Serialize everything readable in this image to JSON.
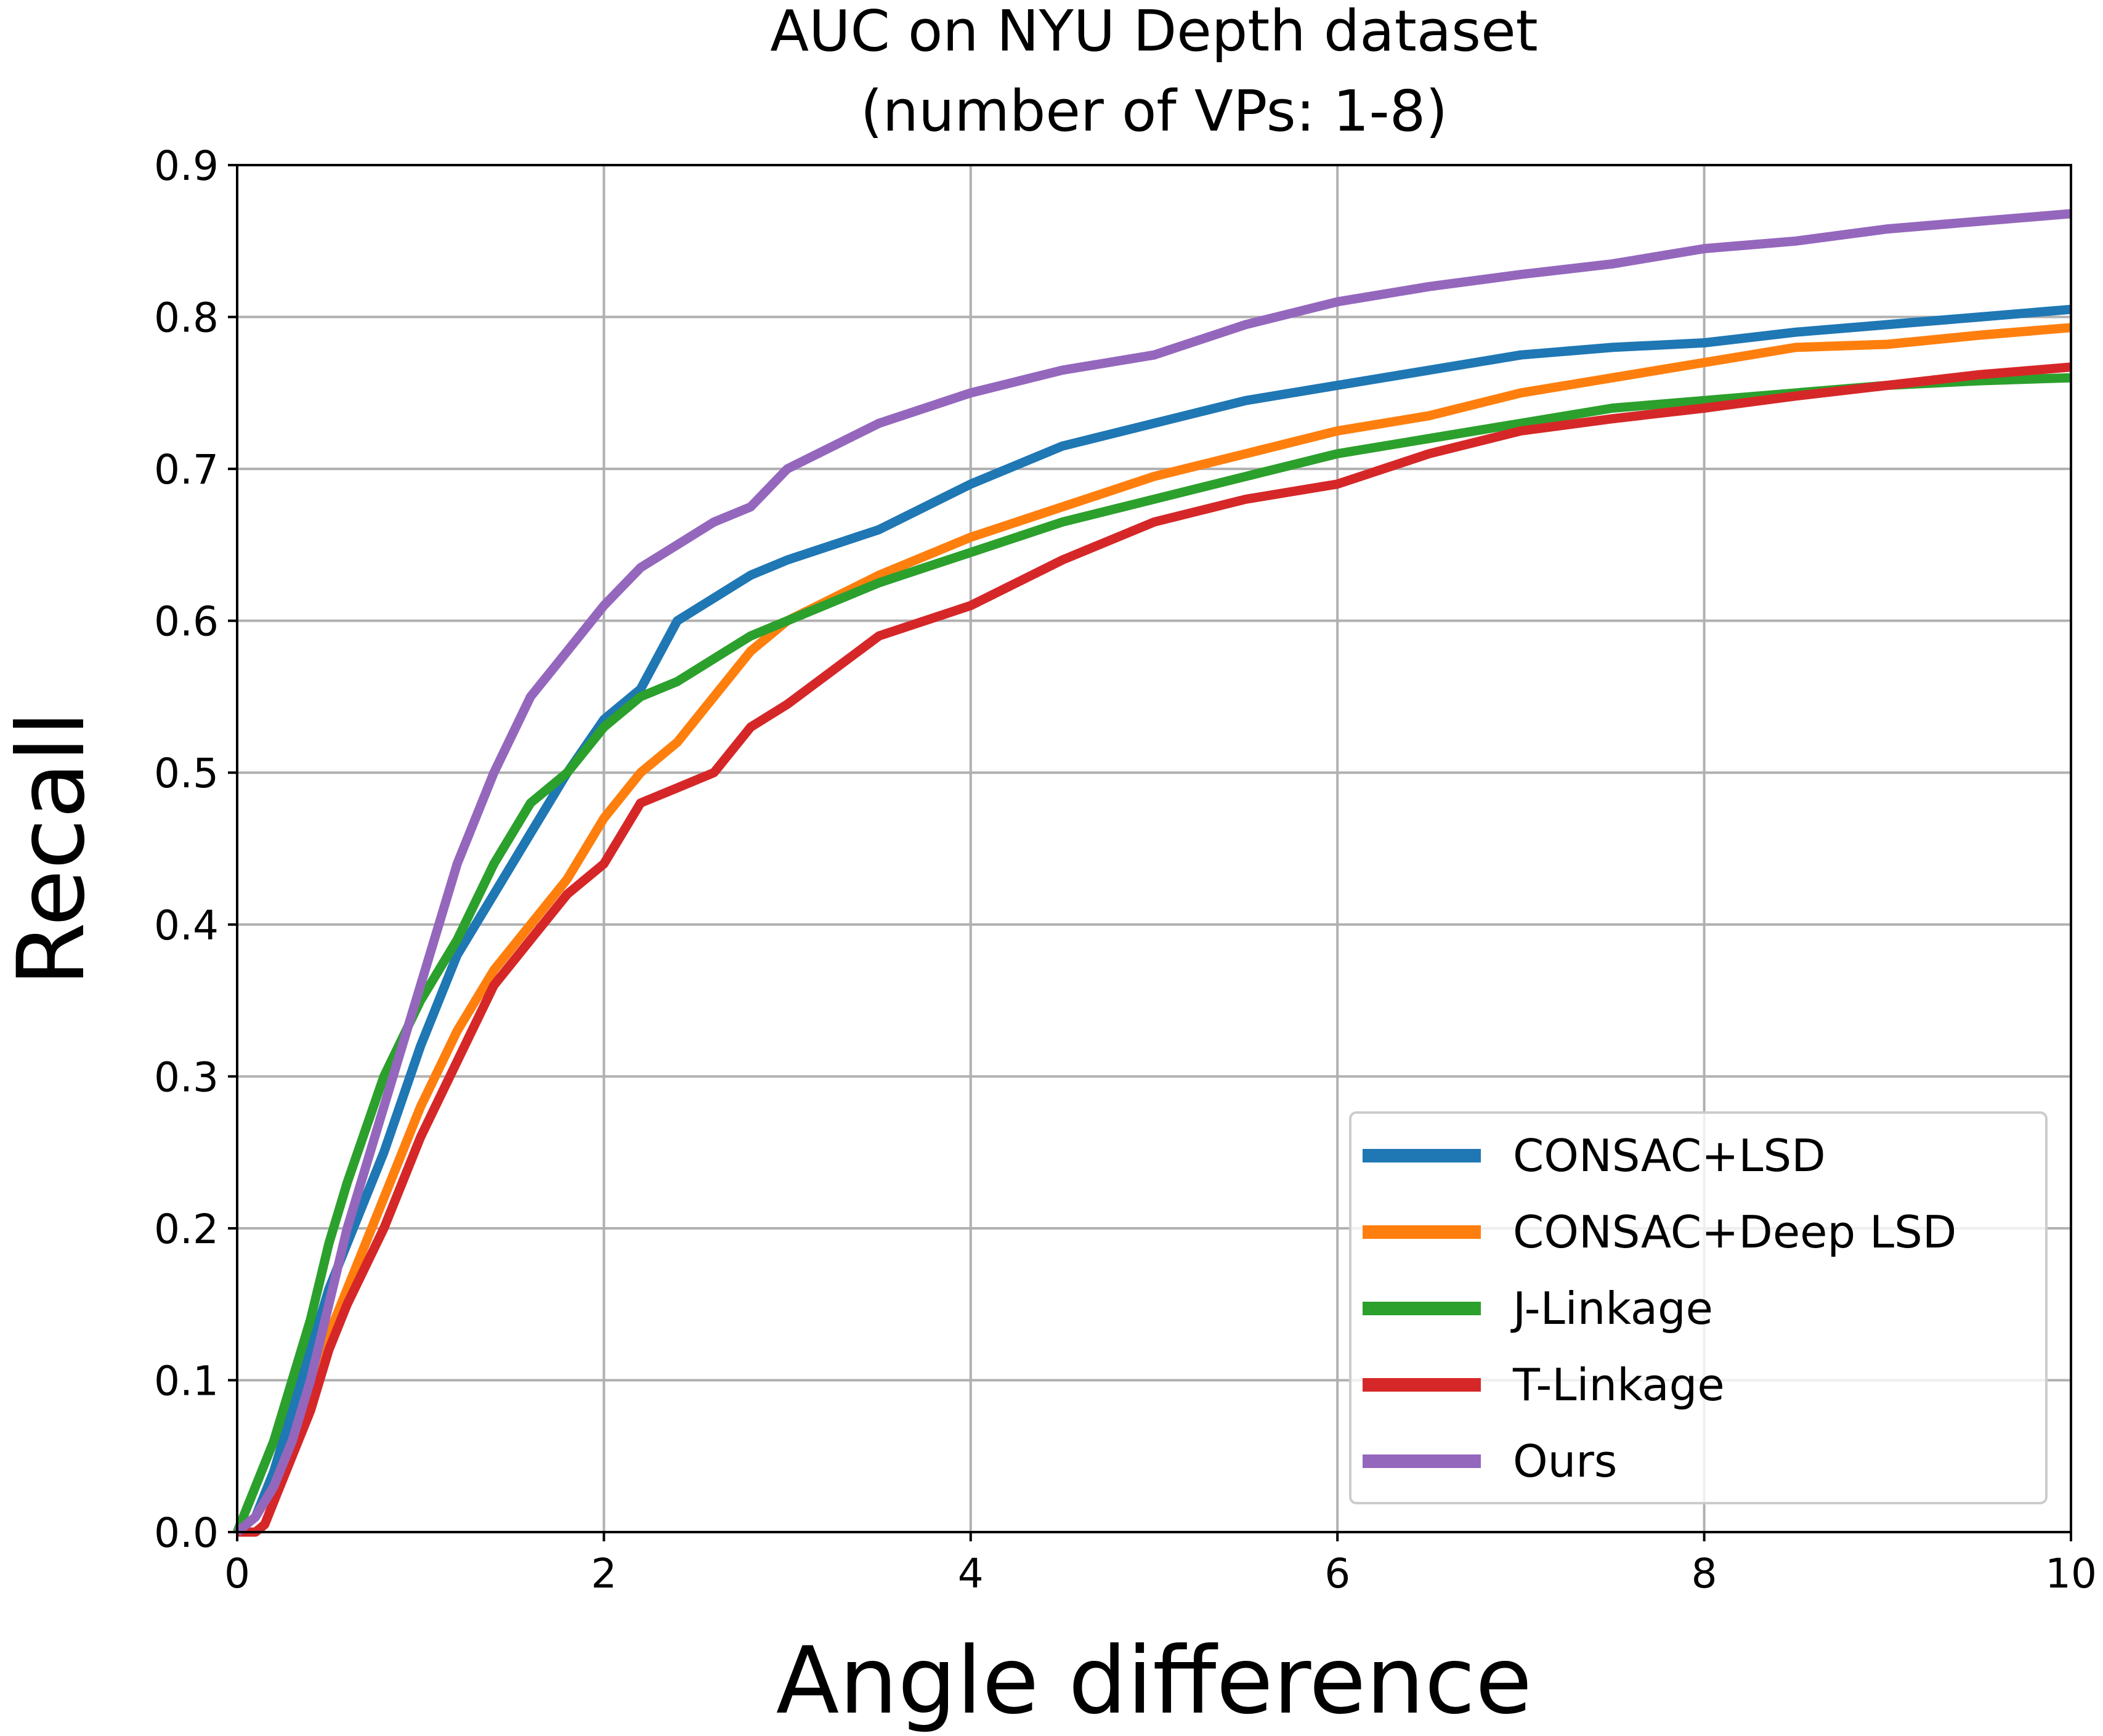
{
  "chart_data": {
    "type": "line",
    "title_lines": [
      "AUC on NYU Depth dataset",
      "(number of VPs: 1-8)"
    ],
    "xlabel": "Angle difference",
    "ylabel": "Recall",
    "xlim": [
      0,
      10
    ],
    "ylim": [
      0,
      0.9
    ],
    "xticks": [
      0,
      2,
      4,
      6,
      8,
      10
    ],
    "xtick_labels": [
      "0",
      "2",
      "4",
      "6",
      "8",
      "10"
    ],
    "yticks": [
      0,
      0.1,
      0.2,
      0.3,
      0.4,
      0.5,
      0.6,
      0.7,
      0.8,
      0.9
    ],
    "ytick_labels": [
      "0.0",
      "0.1",
      "0.2",
      "0.3",
      "0.4",
      "0.5",
      "0.6",
      "0.7",
      "0.8",
      "0.9"
    ],
    "grid": true,
    "legend_position": "bottom-right",
    "series": [
      {
        "name": "CONSAC+LSD",
        "color": "#1f77b4",
        "x": [
          0,
          0.1,
          0.2,
          0.3,
          0.4,
          0.5,
          0.6,
          0.8,
          1.0,
          1.2,
          1.4,
          1.6,
          1.8,
          2.0,
          2.2,
          2.4,
          2.6,
          2.8,
          3.0,
          3.5,
          4.0,
          4.5,
          5.0,
          5.5,
          6.0,
          6.5,
          7.0,
          7.5,
          8.0,
          8.5,
          9.0,
          9.5,
          10.0
        ],
        "y": [
          0,
          0.01,
          0.04,
          0.08,
          0.12,
          0.16,
          0.19,
          0.25,
          0.32,
          0.38,
          0.42,
          0.46,
          0.5,
          0.535,
          0.555,
          0.6,
          0.615,
          0.63,
          0.64,
          0.66,
          0.69,
          0.715,
          0.73,
          0.745,
          0.755,
          0.765,
          0.775,
          0.78,
          0.783,
          0.79,
          0.795,
          0.8,
          0.805
        ]
      },
      {
        "name": "CONSAC+Deep LSD",
        "color": "#ff7f0e",
        "x": [
          0,
          0.1,
          0.2,
          0.3,
          0.4,
          0.5,
          0.6,
          0.8,
          1.0,
          1.2,
          1.4,
          1.6,
          1.8,
          2.0,
          2.2,
          2.4,
          2.6,
          2.8,
          3.0,
          3.5,
          4.0,
          4.5,
          5.0,
          5.5,
          6.0,
          6.5,
          7.0,
          7.5,
          8.0,
          8.5,
          9.0,
          9.5,
          10.0
        ],
        "y": [
          0,
          0.01,
          0.03,
          0.06,
          0.09,
          0.13,
          0.16,
          0.22,
          0.28,
          0.33,
          0.37,
          0.4,
          0.43,
          0.47,
          0.5,
          0.52,
          0.55,
          0.58,
          0.6,
          0.63,
          0.655,
          0.675,
          0.695,
          0.71,
          0.725,
          0.735,
          0.75,
          0.76,
          0.77,
          0.78,
          0.782,
          0.788,
          0.793
        ]
      },
      {
        "name": "J-Linkage",
        "color": "#2ca02c",
        "x": [
          0,
          0.1,
          0.2,
          0.3,
          0.4,
          0.5,
          0.6,
          0.8,
          1.0,
          1.2,
          1.4,
          1.6,
          1.8,
          2.0,
          2.2,
          2.4,
          2.6,
          2.8,
          3.0,
          3.5,
          4.0,
          4.5,
          5.0,
          5.5,
          6.0,
          6.5,
          7.0,
          7.5,
          8.0,
          8.5,
          9.0,
          9.5,
          10.0
        ],
        "y": [
          0,
          0.03,
          0.06,
          0.1,
          0.14,
          0.19,
          0.23,
          0.3,
          0.35,
          0.39,
          0.44,
          0.48,
          0.5,
          0.53,
          0.55,
          0.56,
          0.575,
          0.59,
          0.6,
          0.625,
          0.645,
          0.665,
          0.68,
          0.695,
          0.71,
          0.72,
          0.73,
          0.74,
          0.745,
          0.75,
          0.755,
          0.758,
          0.76
        ]
      },
      {
        "name": "T-Linkage",
        "color": "#d62728",
        "x": [
          0,
          0.1,
          0.15,
          0.2,
          0.3,
          0.4,
          0.5,
          0.6,
          0.8,
          1.0,
          1.2,
          1.4,
          1.6,
          1.8,
          2.0,
          2.2,
          2.4,
          2.6,
          2.8,
          3.0,
          3.5,
          4.0,
          4.5,
          5.0,
          5.5,
          6.0,
          6.5,
          7.0,
          7.5,
          8.0,
          8.5,
          9.0,
          9.5,
          10.0
        ],
        "y": [
          0,
          0,
          0.005,
          0.02,
          0.05,
          0.08,
          0.12,
          0.15,
          0.2,
          0.26,
          0.31,
          0.36,
          0.39,
          0.42,
          0.44,
          0.48,
          0.49,
          0.5,
          0.53,
          0.545,
          0.59,
          0.61,
          0.64,
          0.665,
          0.68,
          0.69,
          0.71,
          0.725,
          0.733,
          0.74,
          0.748,
          0.755,
          0.762,
          0.767
        ]
      },
      {
        "name": "Ours",
        "color": "#9467bd",
        "x": [
          0,
          0.1,
          0.2,
          0.3,
          0.4,
          0.5,
          0.6,
          0.8,
          1.0,
          1.2,
          1.4,
          1.6,
          1.8,
          2.0,
          2.2,
          2.4,
          2.6,
          2.8,
          3.0,
          3.5,
          4.0,
          4.5,
          5.0,
          5.5,
          6.0,
          6.5,
          7.0,
          7.5,
          8.0,
          8.5,
          9.0,
          9.5,
          10.0
        ],
        "y": [
          0,
          0.01,
          0.03,
          0.06,
          0.1,
          0.15,
          0.2,
          0.28,
          0.36,
          0.44,
          0.5,
          0.55,
          0.58,
          0.61,
          0.635,
          0.65,
          0.665,
          0.675,
          0.7,
          0.73,
          0.75,
          0.765,
          0.775,
          0.795,
          0.81,
          0.82,
          0.828,
          0.835,
          0.845,
          0.85,
          0.858,
          0.863,
          0.868
        ]
      }
    ]
  }
}
